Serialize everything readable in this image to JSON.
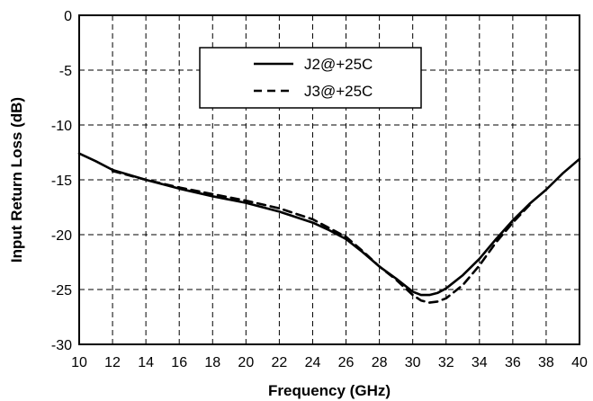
{
  "chart_data": {
    "type": "line",
    "title": "",
    "xlabel": "Frequency (GHz)",
    "ylabel": "Input Return Loss (dB)",
    "xlim": [
      10,
      40
    ],
    "ylim": [
      -30,
      0
    ],
    "xticks": [
      10,
      12,
      14,
      16,
      18,
      20,
      22,
      24,
      26,
      28,
      30,
      32,
      34,
      36,
      38,
      40
    ],
    "yticks": [
      0,
      -5,
      -10,
      -15,
      -20,
      -25,
      -30
    ],
    "grid": true,
    "legend_position": "top-center",
    "series": [
      {
        "name": "J2@+25C",
        "style": "solid",
        "x": [
          10,
          11,
          12,
          14,
          16,
          18,
          20,
          22,
          24,
          25,
          26,
          27,
          28,
          29,
          30,
          30.5,
          31,
          31.5,
          32,
          33,
          34,
          35,
          36,
          37,
          38,
          39,
          40
        ],
        "y": [
          -12.6,
          -13.3,
          -14.1,
          -15.0,
          -15.8,
          -16.5,
          -17.1,
          -17.9,
          -18.9,
          -19.6,
          -20.4,
          -21.6,
          -22.9,
          -24.0,
          -25.2,
          -25.5,
          -25.5,
          -25.3,
          -24.9,
          -23.7,
          -22.2,
          -20.4,
          -18.7,
          -17.2,
          -15.9,
          -14.4,
          -13.1
        ]
      },
      {
        "name": "J3@+25C",
        "style": "dashed",
        "x": [
          12,
          14,
          16,
          18,
          20,
          22,
          24,
          25,
          26,
          27,
          28,
          29,
          30,
          30.5,
          31,
          31.5,
          32,
          33,
          34,
          35,
          36,
          37
        ],
        "y": [
          -14.2,
          -15.0,
          -15.7,
          -16.3,
          -16.9,
          -17.6,
          -18.6,
          -19.4,
          -20.2,
          -21.5,
          -22.9,
          -24.1,
          -25.5,
          -26.0,
          -26.2,
          -26.1,
          -25.8,
          -24.6,
          -22.8,
          -20.7,
          -18.9,
          -17.3
        ]
      }
    ]
  }
}
